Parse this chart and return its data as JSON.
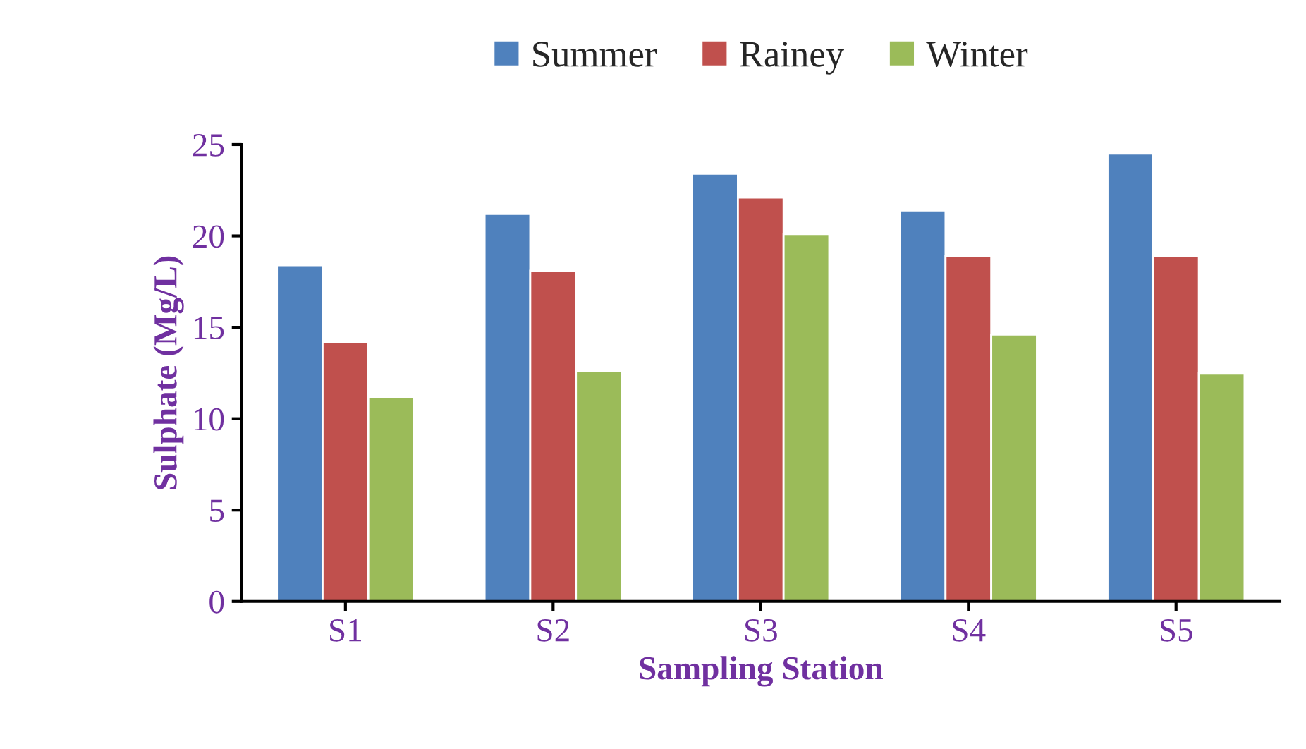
{
  "chart_data": {
    "type": "bar",
    "xlabel": "Sampling Station",
    "ylabel": "Sulphate (Mg/L)",
    "categories": [
      "S1",
      "S2",
      "S3",
      "S4",
      "S5"
    ],
    "series": [
      {
        "name": "Summer",
        "color": "#4f81bd",
        "values": [
          18.4,
          21.2,
          23.4,
          21.4,
          24.5
        ]
      },
      {
        "name": "Rainey",
        "color": "#c0504d",
        "values": [
          14.2,
          18.1,
          22.1,
          18.9,
          18.9
        ]
      },
      {
        "name": "Winter",
        "color": "#9bbb59",
        "values": [
          11.2,
          12.6,
          20.1,
          14.6,
          12.5
        ]
      }
    ],
    "ylim": [
      0,
      25
    ],
    "yticks": [
      0,
      5,
      10,
      15,
      20,
      25
    ],
    "grid": false,
    "legend": "top"
  }
}
